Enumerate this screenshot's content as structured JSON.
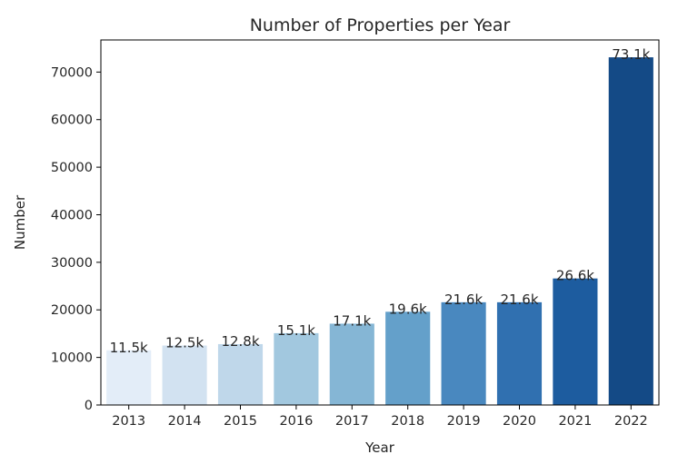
{
  "chart_data": {
    "type": "bar",
    "title": "Number of Properties per Year",
    "xlabel": "Year",
    "ylabel": "Number",
    "categories": [
      "2013",
      "2014",
      "2015",
      "2016",
      "2017",
      "2018",
      "2019",
      "2020",
      "2021",
      "2022"
    ],
    "values": [
      11500,
      12500,
      12800,
      15100,
      17100,
      19600,
      21600,
      21600,
      26600,
      73100
    ],
    "data_labels": [
      "11.5k",
      "12.5k",
      "12.8k",
      "15.1k",
      "17.1k",
      "19.6k",
      "21.6k",
      "21.6k",
      "26.6k",
      "73.1k"
    ],
    "ylim": [
      0,
      76750
    ],
    "yticks": [
      0,
      10000,
      20000,
      30000,
      40000,
      50000,
      60000,
      70000
    ],
    "grid": false,
    "colors": [
      "#e3edf8",
      "#d2e2f1",
      "#bfd7ea",
      "#a2c8df",
      "#85b6d5",
      "#64a0ca",
      "#4988bf",
      "#3070b0",
      "#1d5c9f",
      "#144a86"
    ]
  }
}
